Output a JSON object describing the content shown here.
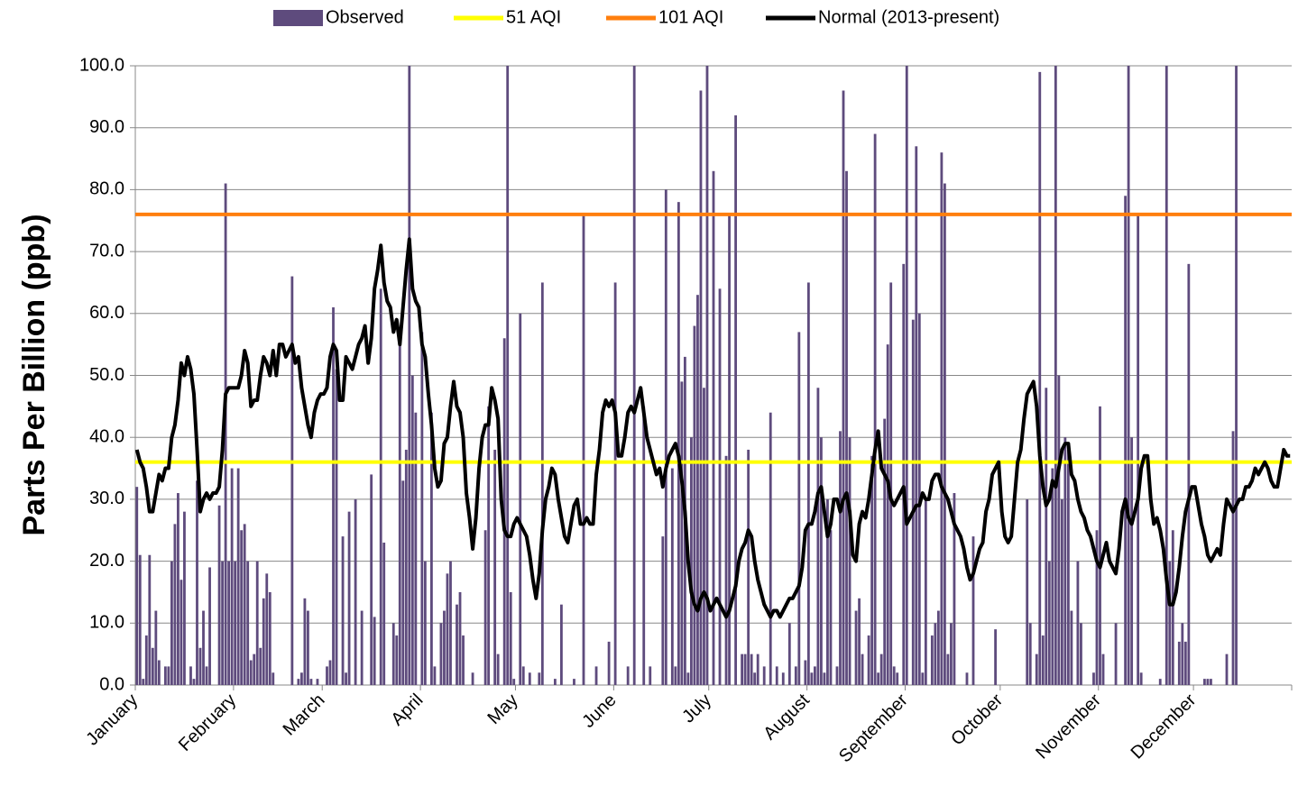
{
  "chart_data": {
    "type": "bar-line",
    "ylabel": "Parts Per Billion (ppb)",
    "ylim": [
      0,
      100
    ],
    "yticks": [
      {
        "value": 0,
        "label": "0.0"
      },
      {
        "value": 10,
        "label": "10.0"
      },
      {
        "value": 20,
        "label": "20.0"
      },
      {
        "value": 30,
        "label": "30.0"
      },
      {
        "value": 40,
        "label": "40.0"
      },
      {
        "value": 50,
        "label": "50.0"
      },
      {
        "value": 60,
        "label": "60.0"
      },
      {
        "value": 70,
        "label": "70.0"
      },
      {
        "value": 80,
        "label": "80.0"
      },
      {
        "value": 90,
        "label": "90.0"
      },
      {
        "value": 100,
        "label": "100.0"
      }
    ],
    "grid": true,
    "categories": [
      "January",
      null,
      null,
      null,
      null,
      null,
      null,
      null,
      null,
      null,
      null,
      null,
      null,
      null,
      null,
      null,
      null,
      null,
      null,
      null,
      null,
      null,
      null,
      null,
      null,
      null,
      null,
      null,
      null,
      null,
      null,
      "February",
      null,
      null,
      null,
      null,
      null,
      null,
      null,
      null,
      null,
      null,
      null,
      null,
      null,
      null,
      null,
      null,
      null,
      null,
      null,
      null,
      null,
      null,
      null,
      null,
      null,
      null,
      null,
      "March",
      null,
      null,
      null,
      null,
      null,
      null,
      null,
      null,
      null,
      null,
      null,
      null,
      null,
      null,
      null,
      null,
      null,
      null,
      null,
      null,
      null,
      null,
      null,
      null,
      null,
      null,
      null,
      null,
      null,
      null,
      "April",
      null,
      null,
      null,
      null,
      null,
      null,
      null,
      null,
      null,
      null,
      null,
      null,
      null,
      null,
      null,
      null,
      null,
      null,
      null,
      null,
      null,
      null,
      null,
      null,
      null,
      null,
      null,
      null,
      null,
      "May",
      null,
      null,
      null,
      null,
      null,
      null,
      null,
      null,
      null,
      null,
      null,
      null,
      null,
      null,
      null,
      null,
      null,
      null,
      null,
      null,
      null,
      null,
      null,
      null,
      null,
      null,
      null,
      null,
      null,
      null,
      "June",
      null,
      null,
      null,
      null,
      null,
      null,
      null,
      null,
      null,
      null,
      null,
      null,
      null,
      null,
      null,
      null,
      null,
      null,
      null,
      null,
      null,
      null,
      null,
      null,
      null,
      null,
      null,
      null,
      null,
      "July",
      null,
      null,
      null,
      null,
      null,
      null,
      null,
      null,
      null,
      null,
      null,
      null,
      null,
      null,
      null,
      null,
      null,
      null,
      null,
      null,
      null,
      null,
      null,
      null,
      null,
      null,
      null,
      null,
      null,
      null,
      "August",
      null,
      null,
      null,
      null,
      null,
      null,
      null,
      null,
      null,
      null,
      null,
      null,
      null,
      null,
      null,
      null,
      null,
      null,
      null,
      null,
      null,
      null,
      null,
      null,
      null,
      null,
      null,
      null,
      null,
      null,
      "September",
      null,
      null,
      null,
      null,
      null,
      null,
      null,
      null,
      null,
      null,
      null,
      null,
      null,
      null,
      null,
      null,
      null,
      null,
      null,
      null,
      null,
      null,
      null,
      null,
      null,
      null,
      null,
      null,
      null,
      "October",
      null,
      null,
      null,
      null,
      null,
      null,
      null,
      null,
      null,
      null,
      null,
      null,
      null,
      null,
      null,
      null,
      null,
      null,
      null,
      null,
      null,
      null,
      null,
      null,
      null,
      null,
      null,
      null,
      null,
      null,
      "November",
      null,
      null,
      null,
      null,
      null,
      null,
      null,
      null,
      null,
      null,
      null,
      null,
      null,
      null,
      null,
      null,
      null,
      null,
      null,
      null,
      null,
      null,
      null,
      null,
      null,
      null,
      null,
      null,
      null,
      "December",
      null,
      null,
      null,
      null,
      null,
      null,
      null,
      null,
      null,
      null,
      null,
      null,
      null,
      null,
      null,
      null,
      null,
      null,
      null,
      null,
      null,
      null,
      null,
      null,
      null,
      null,
      null,
      null,
      null,
      null
    ],
    "series": [
      {
        "name": "Observed",
        "kind": "bar",
        "color": "#5e4b7d",
        "values": [
          32,
          21,
          1,
          8,
          21,
          6,
          12,
          4,
          0,
          3,
          3,
          20,
          26,
          31,
          17,
          28,
          0,
          3,
          1,
          33,
          6,
          12,
          3,
          19,
          0,
          0,
          29,
          20,
          81,
          20,
          35,
          20,
          35,
          25,
          26,
          20,
          4,
          5,
          20,
          6,
          14,
          18,
          15,
          2,
          0,
          0,
          0,
          0,
          0,
          66,
          0,
          1,
          2,
          14,
          12,
          1,
          0,
          1,
          0,
          0,
          3,
          4,
          61,
          51,
          0,
          24,
          2,
          28,
          0,
          30,
          0,
          12,
          0,
          0,
          34,
          11,
          0,
          64,
          23,
          0,
          0,
          10,
          8,
          57,
          33,
          38,
          100,
          50,
          44,
          0,
          57,
          20,
          0,
          44,
          3,
          0,
          10,
          12,
          18,
          20,
          0,
          13,
          15,
          8,
          0,
          0,
          2,
          0,
          0,
          0,
          25,
          45,
          0,
          38,
          5,
          0,
          56,
          100,
          15,
          1,
          0,
          60,
          3,
          0,
          2,
          0,
          0,
          2,
          65,
          0,
          0,
          0,
          1,
          0,
          13,
          0,
          0,
          0,
          1,
          0,
          0,
          76,
          0,
          0,
          0,
          3,
          0,
          0,
          0,
          7,
          0,
          65,
          0,
          0,
          0,
          3,
          0,
          100,
          0,
          0,
          45,
          0,
          3,
          0,
          0,
          0,
          24,
          80,
          0,
          35,
          3,
          78,
          49,
          53,
          2,
          40,
          58,
          63,
          96,
          48,
          100,
          0,
          83,
          0,
          64,
          0,
          37,
          76,
          0,
          92,
          0,
          5,
          5,
          38,
          5,
          2,
          5,
          0,
          3,
          0,
          44,
          0,
          3,
          0,
          2,
          0,
          10,
          0,
          3,
          57,
          0,
          4,
          65,
          2,
          3,
          48,
          40,
          2,
          30,
          25,
          0,
          3,
          41,
          96,
          83,
          40,
          0,
          12,
          14,
          5,
          0,
          8,
          37,
          89,
          2,
          5,
          43,
          55,
          65,
          3,
          2,
          0,
          68,
          100,
          0,
          59,
          87,
          60,
          2,
          30,
          0,
          8,
          10,
          12,
          86,
          81,
          5,
          10,
          31,
          0,
          0,
          0,
          2,
          0,
          24,
          0,
          0,
          0,
          0,
          0,
          0,
          9,
          0,
          0,
          0,
          0,
          0,
          0,
          0,
          0,
          0,
          30,
          10,
          0,
          5,
          99,
          8,
          48,
          20,
          35,
          100,
          50,
          30,
          40,
          38,
          12,
          0,
          20,
          10,
          0,
          0,
          0,
          2,
          25,
          45,
          5,
          0,
          0,
          0,
          10,
          0,
          0,
          79,
          100,
          40,
          0,
          76,
          2,
          0,
          0,
          0,
          0,
          0,
          1,
          0,
          100,
          20,
          25,
          0,
          7,
          10,
          7,
          68,
          0,
          0,
          0,
          0,
          1,
          1,
          1,
          0,
          0,
          0,
          0,
          5,
          0,
          41,
          100,
          0,
          0,
          0,
          0,
          0,
          0,
          0,
          0,
          0,
          0,
          0,
          0,
          0,
          0,
          0,
          0,
          0
        ]
      },
      {
        "name": "Normal (2013-present)",
        "kind": "line",
        "color": "#000000",
        "values": [
          38,
          36,
          35,
          32,
          28,
          28,
          31,
          34,
          33,
          35,
          35,
          40,
          42,
          46,
          52,
          50,
          53,
          51,
          47,
          38,
          28,
          30,
          31,
          30,
          31,
          31,
          32,
          38,
          47,
          48,
          48,
          48,
          48,
          50,
          54,
          52,
          45,
          46,
          46,
          50,
          53,
          52,
          50,
          54,
          50,
          55,
          55,
          53,
          54,
          55,
          52,
          53,
          48,
          45,
          42,
          40,
          44,
          46,
          47,
          47,
          48,
          53,
          55,
          54,
          46,
          46,
          53,
          52,
          51,
          53,
          55,
          56,
          58,
          52,
          56,
          64,
          67,
          71,
          65,
          62,
          61,
          57,
          59,
          55,
          61,
          67,
          72,
          64,
          62,
          61,
          55,
          53,
          47,
          42,
          35,
          32,
          33,
          39,
          40,
          45,
          49,
          45,
          44,
          40,
          31,
          27,
          22,
          27,
          35,
          40,
          42,
          42,
          48,
          46,
          43,
          30,
          25,
          24,
          24,
          26,
          27,
          26,
          25,
          24,
          21,
          17,
          14,
          18,
          25,
          30,
          32,
          35,
          34,
          30,
          27,
          24,
          23,
          26,
          29,
          30,
          26,
          26,
          27,
          26,
          26,
          34,
          38,
          44,
          46,
          45,
          46,
          44,
          37,
          37,
          40,
          44,
          45,
          44,
          46,
          48,
          44,
          40,
          38,
          36,
          34,
          35,
          32,
          35,
          37,
          38,
          39,
          37,
          33,
          28,
          20,
          15,
          13,
          12,
          14,
          15,
          14,
          12,
          13,
          14,
          13,
          12,
          11,
          12,
          14,
          16,
          20,
          22,
          23,
          25,
          24,
          20,
          17,
          15,
          13,
          12,
          11,
          12,
          12,
          11,
          12,
          13,
          14,
          14,
          15,
          16,
          19,
          25,
          26,
          26,
          28,
          31,
          32,
          28,
          24,
          26,
          30,
          30,
          28,
          30,
          31,
          28,
          21,
          20,
          26,
          28,
          27,
          30,
          34,
          38,
          41,
          35,
          34,
          33,
          30,
          29,
          30,
          31,
          32,
          26,
          27,
          28,
          29,
          29,
          31,
          30,
          30,
          33,
          34,
          34,
          32,
          31,
          30,
          28,
          26,
          25,
          24,
          22,
          19,
          17,
          18,
          20,
          22,
          23,
          28,
          30,
          34,
          35,
          36,
          28,
          24,
          23,
          24,
          30,
          36,
          38,
          43,
          47,
          48,
          49,
          45,
          37,
          32,
          29,
          30,
          33,
          32,
          35,
          38,
          39,
          39,
          34,
          33,
          30,
          28,
          27,
          25,
          24,
          22,
          20,
          19,
          21,
          23,
          20,
          19,
          18,
          22,
          28,
          30,
          27,
          26,
          28,
          30,
          35,
          37,
          37,
          30,
          26,
          27,
          25,
          22,
          17,
          13,
          13,
          15,
          19,
          24,
          28,
          30,
          32,
          32,
          29,
          26,
          24,
          21,
          20,
          21,
          22,
          21,
          26,
          30,
          29,
          28,
          29,
          30,
          30,
          32,
          32,
          33,
          35,
          34,
          35,
          36,
          35,
          33,
          32,
          32,
          35,
          38,
          37,
          37
        ]
      }
    ],
    "reference_lines": [
      {
        "name": "51 AQI",
        "value": 36,
        "color": "#ffff00"
      },
      {
        "name": "101 AQI",
        "value": 76,
        "color": "#ff7f0e"
      }
    ]
  }
}
